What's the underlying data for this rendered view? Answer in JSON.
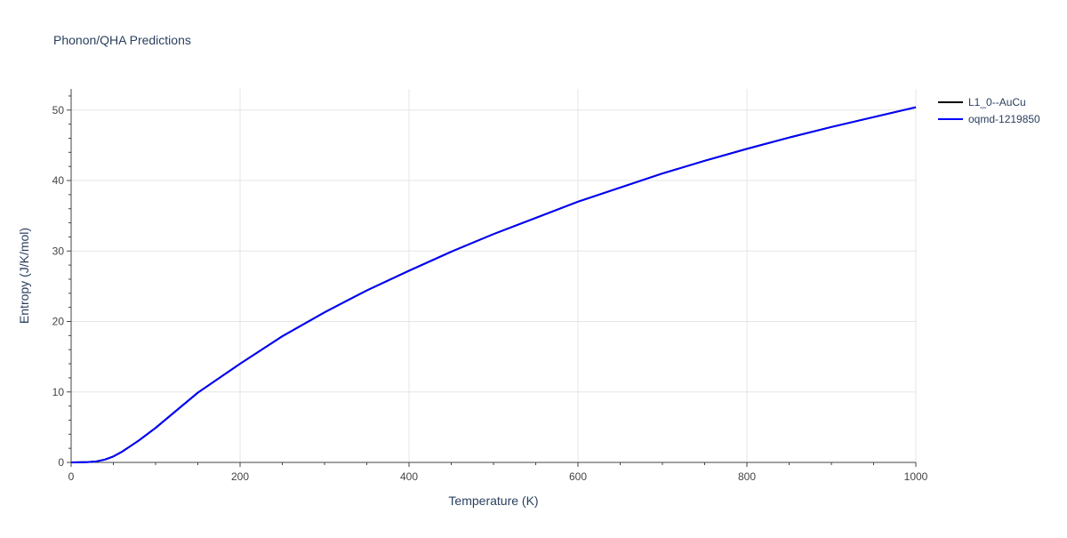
{
  "chart_data": {
    "type": "line",
    "title": "Phonon/QHA Predictions",
    "xlabel": "Temperature (K)",
    "ylabel": "Entropy (J/K/mol)",
    "xlim": [
      0,
      1000
    ],
    "ylim": [
      0,
      53
    ],
    "x_ticks": [
      0,
      200,
      400,
      600,
      800,
      1000
    ],
    "y_ticks": [
      0,
      10,
      20,
      30,
      40,
      50
    ],
    "grid": true,
    "legend_position": "top-right",
    "series": [
      {
        "name": "L1_0--AuCu",
        "color": "#000000",
        "x": [
          0,
          20,
          30,
          40,
          50,
          60,
          70,
          80,
          100,
          120,
          150,
          200,
          250,
          300,
          350,
          400,
          450,
          500,
          550,
          600,
          650,
          700,
          750,
          800,
          850,
          900,
          950,
          1000
        ],
        "y": [
          0,
          0.05,
          0.15,
          0.4,
          0.85,
          1.5,
          2.3,
          3.1,
          4.9,
          6.9,
          9.9,
          14.0,
          17.9,
          21.3,
          24.4,
          27.2,
          29.9,
          32.4,
          34.7,
          37.0,
          39.0,
          41.0,
          42.8,
          44.5,
          46.1,
          47.6,
          49.0,
          50.4
        ]
      },
      {
        "name": "oqmd-1219850",
        "color": "#0000ff",
        "x": [
          0,
          20,
          30,
          40,
          50,
          60,
          70,
          80,
          100,
          120,
          150,
          200,
          250,
          300,
          350,
          400,
          450,
          500,
          550,
          600,
          650,
          700,
          750,
          800,
          850,
          900,
          950,
          1000
        ],
        "y": [
          0,
          0.05,
          0.15,
          0.4,
          0.85,
          1.5,
          2.3,
          3.1,
          4.9,
          6.9,
          9.9,
          14.0,
          17.9,
          21.3,
          24.4,
          27.2,
          29.9,
          32.4,
          34.7,
          37.0,
          39.0,
          41.0,
          42.8,
          44.5,
          46.1,
          47.6,
          49.0,
          50.4
        ]
      }
    ]
  }
}
